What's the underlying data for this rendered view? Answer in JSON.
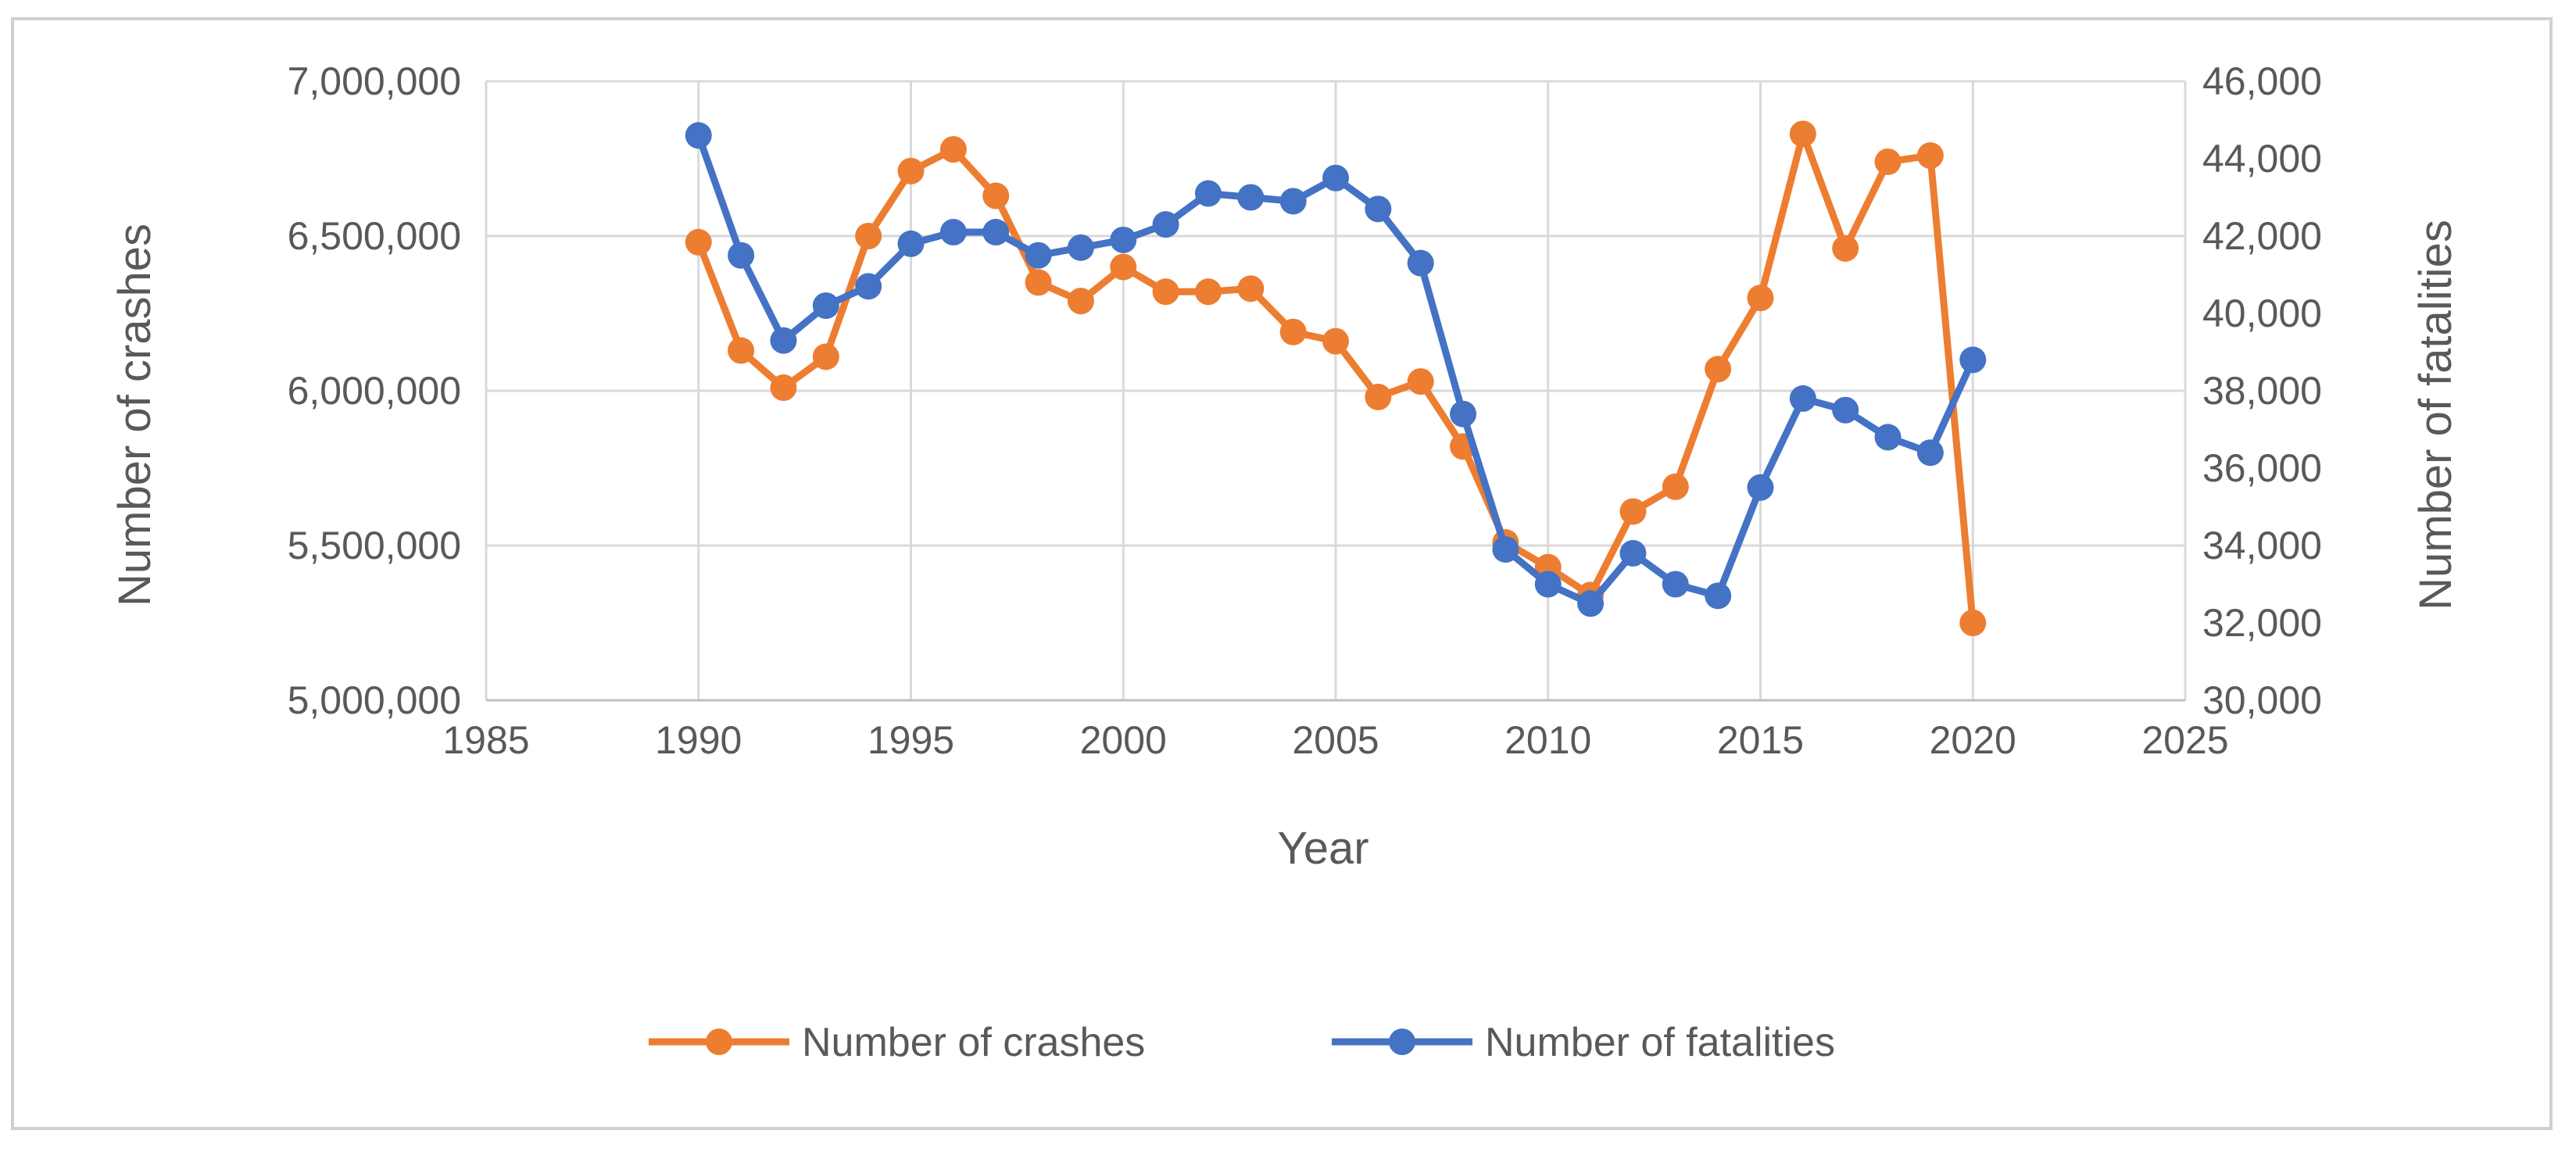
{
  "chart_data": {
    "type": "line",
    "title": "",
    "xlabel": "Year",
    "ylabel_left": "Number of crashes",
    "ylabel_right": "Number of fatalities",
    "xlim": [
      1985,
      2025
    ],
    "x_ticks": [
      1985,
      1990,
      1995,
      2000,
      2005,
      2010,
      2015,
      2020,
      2025
    ],
    "x_tick_labels": [
      "1985",
      "1990",
      "1995",
      "2000",
      "2005",
      "2010",
      "2015",
      "2020",
      "2025"
    ],
    "ylim_left": [
      5000000,
      7000000
    ],
    "y_left_ticks": [
      5000000,
      5500000,
      6000000,
      6500000,
      7000000
    ],
    "y_left_tick_labels": [
      "5,000,000",
      "5,500,000",
      "6,000,000",
      "6,500,000",
      "7,000,000"
    ],
    "ylim_right": [
      30000,
      46000
    ],
    "y_right_ticks": [
      30000,
      32000,
      34000,
      36000,
      38000,
      40000,
      42000,
      44000,
      46000
    ],
    "y_right_tick_labels": [
      "30,000",
      "32,000",
      "34,000",
      "36,000",
      "38,000",
      "40,000",
      "42,000",
      "44,000",
      "46,000"
    ],
    "grid": true,
    "legend_position": "bottom",
    "x": [
      1990,
      1991,
      1992,
      1993,
      1994,
      1995,
      1996,
      1997,
      1998,
      1999,
      2000,
      2001,
      2002,
      2003,
      2004,
      2005,
      2006,
      2007,
      2008,
      2009,
      2010,
      2011,
      2012,
      2013,
      2014,
      2015,
      2016,
      2017,
      2018,
      2019,
      2020
    ],
    "series": [
      {
        "name": "Number of crashes",
        "axis": "left",
        "color": "#ED7D31",
        "values": [
          6480000,
          6130000,
          6010000,
          6110000,
          6500000,
          6710000,
          6780000,
          6630000,
          6350000,
          6290000,
          6400000,
          6320000,
          6320000,
          6330000,
          6190000,
          6160000,
          5980000,
          6030000,
          5820000,
          5510000,
          5430000,
          5340000,
          5610000,
          5690000,
          6070000,
          6300000,
          6830000,
          6460000,
          6740000,
          6760000,
          5250000
        ]
      },
      {
        "name": "Number of fatalities",
        "axis": "right",
        "color": "#4472C4",
        "values": [
          44600,
          41500,
          39300,
          40200,
          40700,
          41800,
          42100,
          42100,
          41500,
          41700,
          41900,
          42300,
          43100,
          43000,
          42900,
          43500,
          42700,
          41300,
          37400,
          33900,
          33000,
          32500,
          33800,
          33000,
          32700,
          35500,
          37800,
          37500,
          36800,
          36400,
          38800
        ]
      }
    ]
  }
}
